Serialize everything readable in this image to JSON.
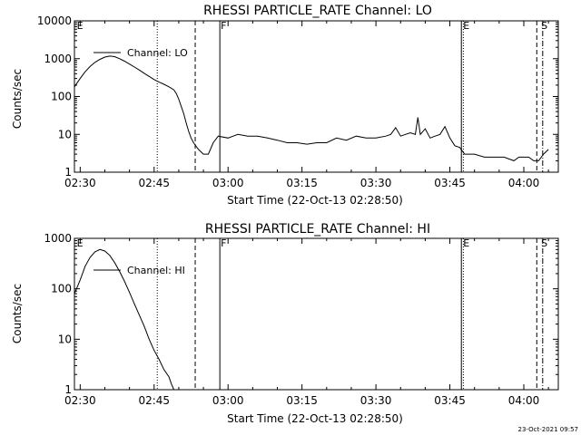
{
  "chart_data": [
    {
      "type": "line",
      "title": "RHESSI PARTICLE_RATE Channel: LO",
      "xlabel": "Start Time (22-Oct-13 02:28:50)",
      "ylabel": "Counts/sec",
      "y_scale": "log",
      "ylim": [
        1,
        10000
      ],
      "xlim": [
        "02:28:50",
        "04:07:00"
      ],
      "x_ticks": [
        "02:30",
        "02:45",
        "03:00",
        "03:15",
        "03:30",
        "03:45",
        "04:00"
      ],
      "y_ticks": [
        "1",
        "10",
        "100",
        "1000",
        "10000"
      ],
      "legend": {
        "position": "top-left",
        "entries": [
          "Channel: LO"
        ]
      },
      "series": [
        {
          "name": "Channel: LO",
          "x": [
            "02:28:50",
            "02:30:00",
            "02:31:00",
            "02:32:00",
            "02:33:00",
            "02:34:00",
            "02:35:00",
            "02:36:00",
            "02:37:00",
            "02:38:00",
            "02:39:00",
            "02:40:00",
            "02:41:00",
            "02:42:00",
            "02:43:00",
            "02:44:00",
            "02:45:00",
            "02:46:00",
            "02:47:00",
            "02:48:00",
            "02:49:00",
            "02:49:30",
            "02:50:00",
            "02:50:30",
            "02:51:00",
            "02:51:30",
            "02:52:00",
            "02:52:30",
            "02:53:00",
            "02:54:00",
            "02:55:00",
            "02:56:00",
            "02:57:00",
            "02:58:00",
            "03:00:00",
            "03:02:00",
            "03:04:00",
            "03:06:00",
            "03:08:00",
            "03:10:00",
            "03:12:00",
            "03:14:00",
            "03:16:00",
            "03:18:00",
            "03:20:00",
            "03:22:00",
            "03:24:00",
            "03:26:00",
            "03:28:00",
            "03:30:00",
            "03:32:00",
            "03:33:00",
            "03:34:00",
            "03:35:00",
            "03:36:00",
            "03:37:00",
            "03:38:00",
            "03:38:30",
            "03:39:00",
            "03:40:00",
            "03:41:00",
            "03:42:00",
            "03:43:00",
            "03:44:00",
            "03:45:00",
            "03:46:00",
            "03:47:00",
            "03:48:00",
            "03:50:00",
            "03:52:00",
            "03:54:00",
            "03:56:00",
            "03:58:00",
            "03:59:00",
            "04:00:00",
            "04:01:00",
            "04:02:00",
            "04:03:00",
            "04:04:00",
            "04:05:00"
          ],
          "values": [
            180,
            300,
            450,
            620,
            800,
            960,
            1100,
            1170,
            1130,
            1000,
            860,
            720,
            600,
            500,
            410,
            340,
            280,
            240,
            210,
            180,
            150,
            120,
            85,
            55,
            35,
            20,
            12,
            8,
            6,
            4,
            3,
            3,
            6,
            9,
            8,
            10,
            9,
            9,
            8,
            7,
            6,
            6,
            5.5,
            6,
            6,
            8,
            7,
            9,
            8,
            8,
            9,
            10,
            15,
            9,
            10,
            11,
            10,
            28,
            10,
            14,
            8,
            9,
            10,
            16,
            8,
            5,
            4.5,
            3,
            3,
            2.5,
            2.5,
            2.5,
            2,
            2.5,
            2.5,
            2.5,
            2,
            2,
            3,
            4
          ]
        }
      ],
      "markers": [
        "E",
        "F",
        "E",
        "S"
      ]
    },
    {
      "type": "line",
      "title": "RHESSI PARTICLE_RATE Channel: HI",
      "xlabel": "Start Time (22-Oct-13 02:28:50)",
      "ylabel": "Counts/sec",
      "y_scale": "log",
      "ylim": [
        1,
        1000
      ],
      "xlim": [
        "02:28:50",
        "04:07:00"
      ],
      "x_ticks": [
        "02:30",
        "02:45",
        "03:00",
        "03:15",
        "03:30",
        "03:45",
        "04:00"
      ],
      "y_ticks": [
        "1",
        "10",
        "100",
        "1000"
      ],
      "legend": {
        "position": "top-left",
        "entries": [
          "Channel: HI"
        ]
      },
      "series": [
        {
          "name": "Channel: HI",
          "x": [
            "02:28:50",
            "02:30:00",
            "02:31:00",
            "02:32:00",
            "02:33:00",
            "02:34:00",
            "02:35:00",
            "02:36:00",
            "02:37:00",
            "02:38:00",
            "02:39:00",
            "02:40:00",
            "02:41:00",
            "02:42:00",
            "02:43:00",
            "02:44:00",
            "02:45:00",
            "02:46:00",
            "02:47:00",
            "02:48:00",
            "02:48:30",
            "02:49:00"
          ],
          "values": [
            80,
            150,
            280,
            420,
            540,
            600,
            560,
            460,
            330,
            220,
            140,
            85,
            50,
            30,
            18,
            10,
            6,
            4,
            2.5,
            1.8,
            1.3,
            1
          ]
        }
      ],
      "markers": [
        "E",
        "F",
        "E",
        "S"
      ]
    }
  ],
  "footer": {
    "timestamp": "23-Oct-2021 09:57"
  }
}
